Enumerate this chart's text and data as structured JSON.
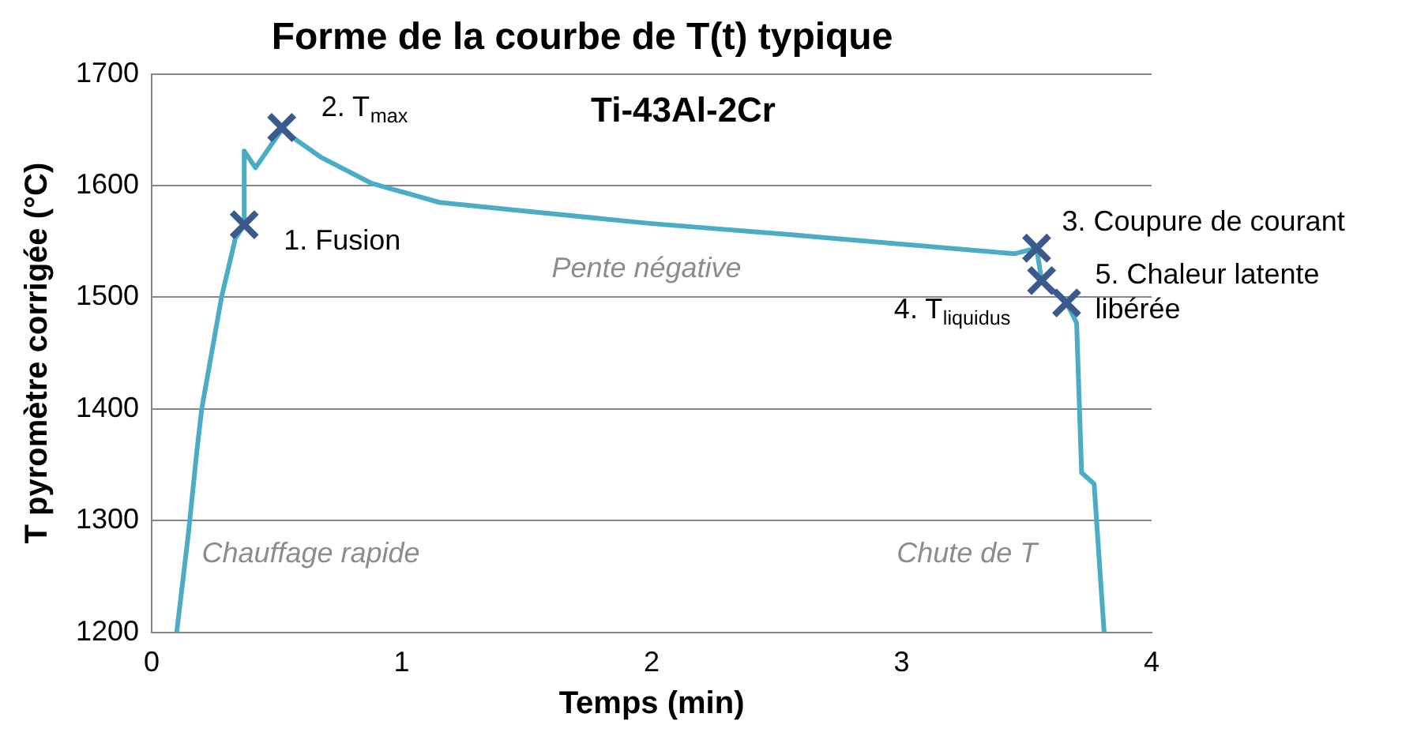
{
  "chart_data": {
    "type": "line",
    "title": "Forme de la courbe de T(t) typique",
    "subtitle": "Ti-43Al-2Cr",
    "xlabel": "Temps (min)",
    "ylabel": "T pyromètre corrigée (°C)",
    "xlim": [
      0,
      4
    ],
    "xticks": [
      0,
      1,
      2,
      3,
      4
    ],
    "ylim": [
      1200,
      1700
    ],
    "yticks": [
      1200,
      1300,
      1400,
      1500,
      1600,
      1700
    ],
    "grid": "y",
    "legend": false,
    "series": [
      {
        "color": "#4bacc6",
        "marker": "none",
        "x": [
          0.1,
          0.147,
          0.18,
          0.2,
          0.28,
          0.335,
          0.37,
          0.37,
          0.415,
          0.52,
          0.68,
          0.88,
          1.15,
          1.5,
          2.0,
          2.56,
          3.45,
          3.54,
          3.56,
          3.66,
          3.7,
          3.72,
          3.77,
          3.81
        ],
        "values": [
          1200,
          1289,
          1361,
          1400,
          1501,
          1553,
          1565,
          1631,
          1616,
          1650,
          1625,
          1602,
          1585,
          1577,
          1566,
          1556,
          1539,
          1544,
          1515,
          1495,
          1477,
          1343,
          1333,
          1200
        ]
      },
      {
        "type": "scatter",
        "color": "#3b5a8c",
        "marker": "cross",
        "x": [
          0.37,
          0.52,
          3.54,
          3.56,
          3.66
        ],
        "values": [
          1565,
          1652,
          1544,
          1515,
          1495
        ]
      }
    ],
    "annotations": [
      "1. Fusion",
      "2. T$_{max}$",
      "3. Coupure de courant",
      "4. T$_{liquidus}$",
      "5. Chaleur latente\nlibérée",
      "Chauffage rapide",
      "Pente négative",
      "Chute de T"
    ]
  }
}
